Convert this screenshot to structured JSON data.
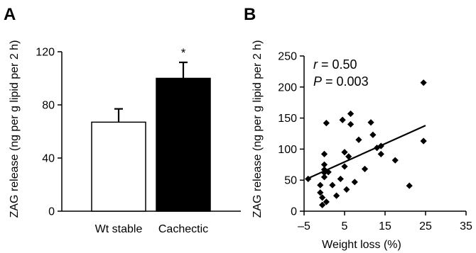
{
  "panels": {
    "a_label": "A",
    "b_label": "B"
  },
  "chart_data": [
    {
      "panel": "A",
      "type": "bar",
      "title": "",
      "xlabel": "",
      "ylabel": "ZAG release (ng per g lipid per 2 h)",
      "ylim": [
        0,
        120
      ],
      "yticks": [
        "0",
        "40",
        "80",
        "120"
      ],
      "categories": [
        "Wt stable",
        "Cachectic"
      ],
      "values": [
        67,
        100
      ],
      "errors": [
        10,
        12
      ],
      "bar_colors": [
        "#ffffff",
        "#000000"
      ],
      "annotations": [
        "",
        "*"
      ],
      "grid": false,
      "legend": "none"
    },
    {
      "panel": "B",
      "type": "scatter",
      "title": "",
      "xlabel": "Weight loss (%)",
      "ylabel": "ZAG release (ng per g lipid per 2 h)",
      "xlim": [
        -5,
        35
      ],
      "ylim": [
        0,
        250
      ],
      "xticks": [
        "–5",
        "5",
        "15",
        "25",
        "35"
      ],
      "yticks": [
        "0",
        "50",
        "100",
        "150",
        "200",
        "250"
      ],
      "stats": {
        "r_symbol": "r",
        "r_value": " = 0.50",
        "p_symbol": "P",
        "p_value": " = 0.003"
      },
      "marker": "diamond",
      "points": [
        [
          -4,
          52
        ],
        [
          -1,
          42
        ],
        [
          -1,
          30
        ],
        [
          -0.5,
          22
        ],
        [
          -0.5,
          10
        ],
        [
          0,
          92
        ],
        [
          0,
          75
        ],
        [
          0,
          67
        ],
        [
          0,
          62
        ],
        [
          0,
          55
        ],
        [
          0.5,
          142
        ],
        [
          0.5,
          15
        ],
        [
          1,
          63
        ],
        [
          2,
          42
        ],
        [
          3,
          25
        ],
        [
          4,
          52
        ],
        [
          4.5,
          147
        ],
        [
          5,
          95
        ],
        [
          5,
          72
        ],
        [
          5.5,
          35
        ],
        [
          6,
          88
        ],
        [
          6.5,
          157
        ],
        [
          6.5,
          140
        ],
        [
          7.5,
          47
        ],
        [
          8.5,
          115
        ],
        [
          10,
          68
        ],
        [
          11.5,
          143
        ],
        [
          12,
          123
        ],
        [
          13,
          102
        ],
        [
          14,
          105
        ],
        [
          14,
          92
        ],
        [
          17.5,
          82
        ],
        [
          21,
          41
        ],
        [
          24.5,
          207
        ],
        [
          24.5,
          113
        ]
      ],
      "trendline": {
        "x": [
          -4,
          25
        ],
        "y": [
          53,
          138
        ]
      },
      "grid": false,
      "legend": "none"
    }
  ]
}
